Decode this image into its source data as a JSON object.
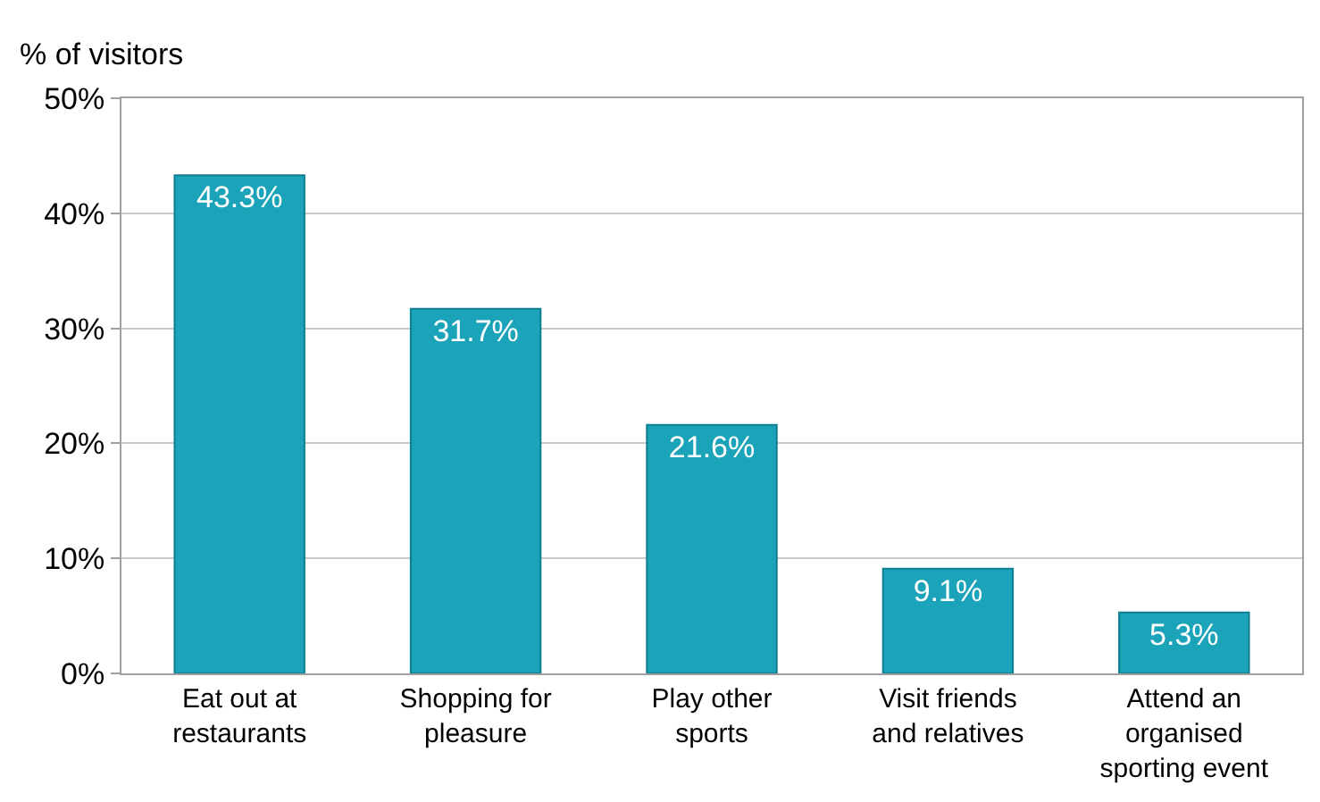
{
  "chart_data": {
    "type": "bar",
    "ylabel": "% of visitors",
    "categories": [
      "Eat out at restaurants",
      "Shopping for pleasure",
      "Play other sports",
      "Visit friends and relatives",
      "Attend an organised sporting event"
    ],
    "values": [
      43.3,
      31.7,
      21.6,
      9.1,
      5.3
    ],
    "value_labels": [
      "43.3%",
      "31.7%",
      "21.6%",
      "9.1%",
      "5.3%"
    ],
    "color": "#1ba3b9",
    "ylim": [
      0,
      50
    ],
    "yticks": [
      {
        "value": 0,
        "label": "0%"
      },
      {
        "value": 10,
        "label": "10%"
      },
      {
        "value": 20,
        "label": "20%"
      },
      {
        "value": 30,
        "label": "30%"
      },
      {
        "value": 40,
        "label": "40%"
      },
      {
        "value": 50,
        "label": "50%"
      }
    ],
    "grid": "y",
    "legend": false
  }
}
